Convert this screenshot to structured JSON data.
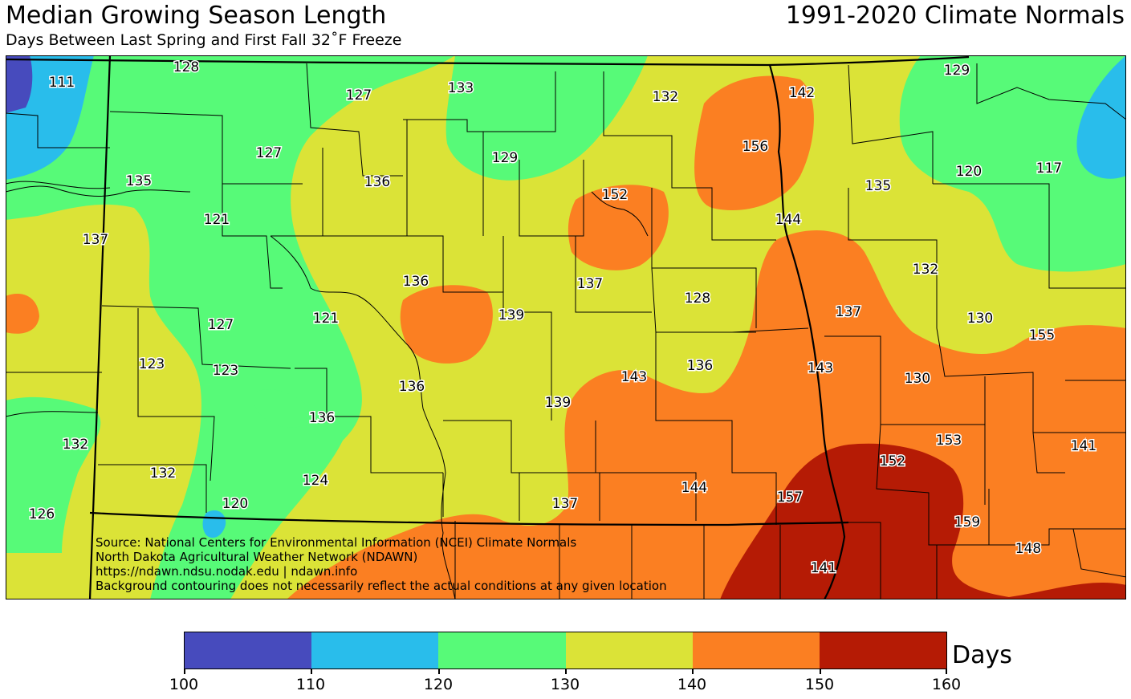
{
  "header": {
    "title": "Median Growing Season Length",
    "subtitle": "Days Between Last Spring and First Fall 32˚F Freeze",
    "period": "1991-2020 Climate Normals"
  },
  "source_lines": [
    "Source: National Centers for Environmental Information (NCEI) Climate Normals",
    "North Dakota Agricultural Weather Network (NDAWN)",
    "https://ndawn.ndsu.nodak.edu | ndawn.info",
    "Background contouring does not necessarily reflect the actual conditions at any given location"
  ],
  "colorbar": {
    "unit": "Days",
    "ticks": [
      "100",
      "110",
      "120",
      "130",
      "140",
      "150",
      "160"
    ],
    "bins": [
      {
        "range": "100-110",
        "color": "#474bbd"
      },
      {
        "range": "110-120",
        "color": "#29bdeb"
      },
      {
        "range": "120-130",
        "color": "#57fa78"
      },
      {
        "range": "130-140",
        "color": "#dbe337"
      },
      {
        "range": "140-150",
        "color": "#fb7f22"
      },
      {
        "range": "150-160",
        "color": "#b51b05"
      }
    ]
  },
  "station_values": [
    "111",
    "128",
    "127",
    "133",
    "132",
    "142",
    "129",
    "127",
    "136",
    "129",
    "156",
    "120",
    "117",
    "135",
    "135",
    "152",
    "144",
    "121",
    "137",
    "132",
    "136",
    "137",
    "139",
    "128",
    "137",
    "130",
    "155",
    "127",
    "121",
    "123",
    "123",
    "143",
    "136",
    "143",
    "130",
    "136",
    "139",
    "153",
    "141",
    "132",
    "136",
    "152",
    "132",
    "144",
    "157",
    "124",
    "120",
    "137",
    "159",
    "126",
    "148",
    "141"
  ]
}
